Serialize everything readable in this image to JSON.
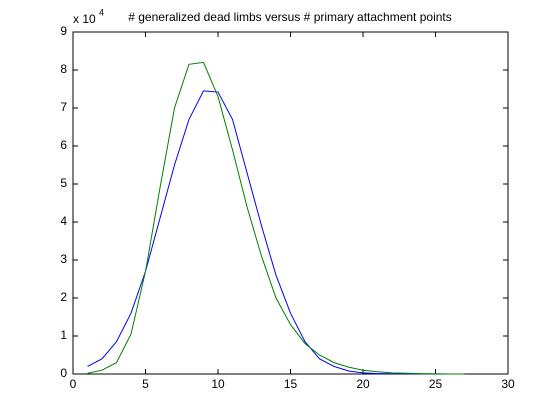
{
  "chart_data": {
    "type": "line",
    "title": "# generalized dead limbs versus # primary attachment points",
    "y_multiplier": {
      "base": "x 10",
      "exponent": "4"
    },
    "x": [
      1,
      2,
      3,
      4,
      5,
      6,
      7,
      8,
      9,
      10,
      11,
      12,
      13,
      14,
      15,
      16,
      17,
      18,
      19,
      20,
      21,
      22,
      23,
      24,
      25,
      26,
      27
    ],
    "series": [
      {
        "color": "#0000ff",
        "values": [
          0.2,
          0.4,
          0.85,
          1.6,
          2.7,
          4.1,
          5.5,
          6.7,
          7.45,
          7.42,
          6.7,
          5.3,
          3.9,
          2.6,
          1.6,
          0.85,
          0.4,
          0.2,
          0.08,
          0.03,
          0.01,
          0.01,
          0.01,
          0,
          0,
          0,
          0
        ]
      },
      {
        "color": "#008000",
        "values": [
          0.02,
          0.1,
          0.3,
          1.05,
          2.7,
          4.9,
          7.0,
          8.15,
          8.2,
          7.3,
          5.9,
          4.4,
          3.1,
          2.0,
          1.3,
          0.8,
          0.5,
          0.3,
          0.18,
          0.1,
          0.06,
          0.03,
          0.02,
          0.01,
          0.005,
          0,
          0
        ]
      }
    ],
    "xlim": [
      0,
      30
    ],
    "xticks": [
      0,
      5,
      10,
      15,
      20,
      25,
      30
    ],
    "ylim": [
      0,
      9
    ],
    "yticks": [
      0,
      1,
      2,
      3,
      4,
      5,
      6,
      7,
      8,
      9
    ],
    "grid": false
  }
}
